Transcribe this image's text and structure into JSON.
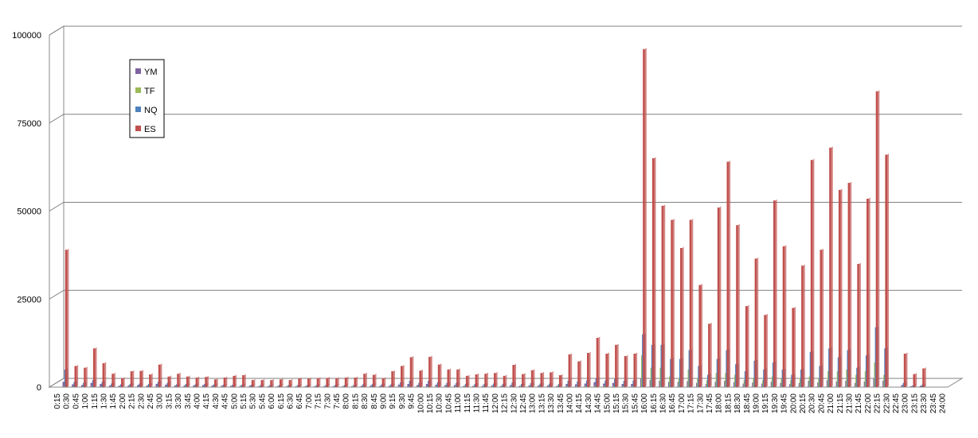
{
  "chart_data": {
    "type": "bar",
    "categories": [
      "0:15",
      "0:30",
      "0:45",
      "1:00",
      "1:15",
      "1:30",
      "1:45",
      "2:00",
      "2:15",
      "2:30",
      "2:45",
      "3:00",
      "3:15",
      "3:30",
      "3:45",
      "4:00",
      "4:15",
      "4:30",
      "4:45",
      "5:00",
      "5:15",
      "5:30",
      "5:45",
      "6:00",
      "6:15",
      "6:30",
      "6:45",
      "7:00",
      "7:15",
      "7:30",
      "7:45",
      "8:00",
      "8:15",
      "8:30",
      "8:45",
      "9:00",
      "9:15",
      "9:30",
      "9:45",
      "10:00",
      "10:15",
      "10:30",
      "10:45",
      "11:00",
      "11:15",
      "11:30",
      "11:45",
      "12:00",
      "12:15",
      "12:30",
      "12:45",
      "13:00",
      "13:15",
      "13:30",
      "13:45",
      "14:00",
      "14:15",
      "14:30",
      "14:45",
      "15:00",
      "15:15",
      "15:30",
      "15:45",
      "16:00",
      "16:15",
      "16:30",
      "16:45",
      "17:00",
      "17:15",
      "17:30",
      "17:45",
      "18:00",
      "18:15",
      "18:30",
      "18:45",
      "19:00",
      "19:15",
      "19:30",
      "19:45",
      "20:00",
      "20:15",
      "20:30",
      "20:45",
      "21:00",
      "21:15",
      "21:30",
      "21:45",
      "22:00",
      "22:15",
      "22:30",
      "22:45",
      "23:00",
      "23:15",
      "23:30",
      "23:45",
      "24:00"
    ],
    "series": [
      {
        "name": "YM",
        "color": "#8064a2",
        "values": [
          1500,
          800,
          600,
          1200,
          900,
          500,
          400,
          500,
          600,
          500,
          900,
          700,
          500,
          500,
          500,
          600,
          500,
          400,
          400,
          400,
          400,
          300,
          300,
          300,
          300,
          300,
          300,
          300,
          300,
          300,
          300,
          300,
          400,
          500,
          400,
          400,
          700,
          900,
          600,
          900,
          700,
          600,
          600,
          400,
          400,
          400,
          500,
          400,
          600,
          400,
          500,
          500,
          500,
          400,
          900,
          800,
          1000,
          1400,
          1000,
          1200,
          900,
          900,
          2500,
          2000,
          1800,
          1500,
          1500,
          1700,
          1200,
          900,
          1500,
          1800,
          1400,
          1000,
          1300,
          1000,
          1500,
          1200,
          900,
          1200,
          1800,
          1300,
          2000,
          1600,
          1800,
          1200,
          1600,
          2500,
          1800,
          0,
          600,
          300,
          400,
          0,
          0,
          0
        ]
      },
      {
        "name": "TF",
        "color": "#9bbb59",
        "values": [
          300,
          200,
          200,
          300,
          200,
          200,
          200,
          200,
          200,
          200,
          200,
          200,
          200,
          200,
          200,
          200,
          200,
          200,
          200,
          200,
          200,
          200,
          200,
          200,
          200,
          200,
          200,
          200,
          200,
          200,
          200,
          200,
          200,
          200,
          200,
          200,
          300,
          300,
          300,
          300,
          300,
          300,
          300,
          300,
          300,
          300,
          300,
          300,
          300,
          300,
          300,
          300,
          300,
          300,
          400,
          400,
          400,
          500,
          400,
          500,
          400,
          400,
          9000,
          5500,
          5500,
          3000,
          2500,
          5000,
          2500,
          2000,
          4000,
          4000,
          3500,
          2000,
          2500,
          2000,
          3000,
          2500,
          2000,
          2500,
          3000,
          2500,
          4500,
          4500,
          5000,
          3500,
          4500,
          7000,
          3500,
          0,
          200,
          100,
          100,
          0,
          0,
          0
        ]
      },
      {
        "name": "NQ",
        "color": "#4f81bd",
        "values": [
          5000,
          1500,
          1200,
          2000,
          1500,
          1000,
          800,
          900,
          1000,
          900,
          1500,
          1200,
          800,
          900,
          800,
          900,
          800,
          700,
          700,
          700,
          700,
          600,
          600,
          600,
          600,
          600,
          600,
          600,
          600,
          600,
          600,
          600,
          800,
          900,
          800,
          800,
          1300,
          1800,
          1200,
          1800,
          1400,
          1200,
          1200,
          900,
          900,
          900,
          1000,
          900,
          1300,
          900,
          1100,
          1000,
          1000,
          900,
          1800,
          1600,
          1900,
          2600,
          1900,
          2300,
          1800,
          1900,
          15000,
          12000,
          12000,
          8000,
          8000,
          10500,
          6000,
          3500,
          8000,
          10500,
          6500,
          4500,
          7500,
          5000,
          7000,
          5000,
          3500,
          5000,
          10000,
          6000,
          11000,
          8500,
          10500,
          5500,
          9000,
          17000,
          11000,
          0,
          1200,
          500,
          700,
          0,
          0,
          0
        ]
      },
      {
        "name": "ES",
        "color": "#c0504d",
        "values": [
          39000,
          6000,
          5500,
          11000,
          6800,
          3800,
          2500,
          4500,
          4600,
          3600,
          6400,
          3000,
          3800,
          3000,
          2700,
          2900,
          2200,
          2700,
          3200,
          3400,
          2000,
          2000,
          2000,
          2200,
          2000,
          2400,
          2400,
          2500,
          2600,
          2500,
          2700,
          2700,
          3800,
          3500,
          2500,
          4500,
          6000,
          8500,
          4700,
          8600,
          6400,
          5000,
          5000,
          3200,
          3600,
          3800,
          4000,
          3200,
          6300,
          3700,
          4800,
          4000,
          4200,
          3400,
          9300,
          7300,
          9700,
          14000,
          9500,
          12000,
          8800,
          9500,
          96000,
          65000,
          51500,
          47500,
          39500,
          47500,
          29000,
          18000,
          51000,
          64000,
          46000,
          23000,
          36500,
          20500,
          53000,
          40000,
          22500,
          34500,
          64500,
          39000,
          68000,
          56000,
          58000,
          35000,
          53500,
          84000,
          66000,
          0,
          9500,
          3700,
          5300,
          0,
          0,
          0
        ]
      }
    ],
    "ylim": [
      0,
      100000
    ],
    "yticks": [
      0,
      25000,
      50000,
      75000,
      100000
    ],
    "grid": true,
    "legend": "upper-left"
  }
}
